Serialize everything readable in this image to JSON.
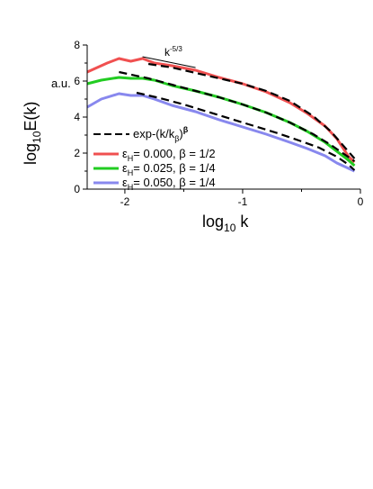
{
  "chart_data": {
    "type": "line",
    "xlim": [
      -2.32,
      0
    ],
    "ylim": [
      0,
      8
    ],
    "x_ticks": [
      "-2",
      "-1",
      "0"
    ],
    "y_ticks": [
      "0",
      "2",
      "4",
      "6",
      "8"
    ],
    "ylabel_base": "log",
    "ylabel_sub": "10",
    "ylabel_rest": "E(k)",
    "xlabel_base": "log",
    "xlabel_sub": "10",
    "xlabel_rest": " k",
    "unit_label": "a.u.",
    "slope_label_base": "k",
    "slope_label_exp": "-5/3",
    "slope_line": {
      "x": [
        -1.85,
        -1.4
      ],
      "y": [
        7.35,
        6.75
      ]
    },
    "legend_placement": "bottom-left",
    "legend": {
      "fit_label": "exp-(k/k",
      "fit_sub": "β",
      "fit_paren": ")",
      "fit_exp": "β",
      "entries": [
        {
          "eps": "ε",
          "sub": "H",
          "text": "= 0.000, β = 1/2",
          "color": "#f05050"
        },
        {
          "eps": "ε",
          "sub": "H",
          "text": "= 0.025, β = 1/4",
          "color": "#22cc22"
        },
        {
          "eps": "ε",
          "sub": "H",
          "text": "= 0.050, β = 1/4",
          "color": "#8888ee"
        }
      ]
    },
    "series": [
      {
        "name": "ε_H = 0.000, β = 1/2",
        "color": "#f05050",
        "x": [
          -2.32,
          -2.15,
          -2.05,
          -1.95,
          -1.85,
          -1.75,
          -1.6,
          -1.4,
          -1.2,
          -1.0,
          -0.8,
          -0.6,
          -0.45,
          -0.3,
          -0.2,
          -0.1,
          -0.05
        ],
        "y": [
          6.5,
          7.0,
          7.25,
          7.1,
          7.25,
          7.0,
          6.85,
          6.6,
          6.2,
          5.85,
          5.4,
          4.8,
          4.2,
          3.5,
          2.8,
          1.8,
          1.5
        ]
      },
      {
        "name": "ε_H = 0.025, β = 1/4",
        "color": "#22cc22",
        "x": [
          -2.32,
          -2.2,
          -2.05,
          -1.95,
          -1.85,
          -1.75,
          -1.6,
          -1.4,
          -1.2,
          -1.0,
          -0.8,
          -0.6,
          -0.45,
          -0.3,
          -0.2,
          -0.1,
          -0.05
        ],
        "y": [
          5.85,
          6.05,
          6.2,
          6.15,
          6.15,
          6.05,
          5.75,
          5.45,
          5.1,
          4.7,
          4.25,
          3.7,
          3.2,
          2.6,
          2.1,
          1.6,
          1.3
        ]
      },
      {
        "name": "ε_H = 0.050, β = 1/4",
        "color": "#8888ee",
        "x": [
          -2.32,
          -2.2,
          -2.05,
          -1.95,
          -1.85,
          -1.75,
          -1.6,
          -1.4,
          -1.2,
          -1.0,
          -0.8,
          -0.6,
          -0.45,
          -0.3,
          -0.2,
          -0.1,
          -0.05
        ],
        "y": [
          4.55,
          5.0,
          5.3,
          5.2,
          5.2,
          5.0,
          4.65,
          4.3,
          3.85,
          3.45,
          3.05,
          2.6,
          2.25,
          1.85,
          1.45,
          1.15,
          1.0
        ]
      }
    ],
    "fit_series": [
      {
        "name": "fit red",
        "x": [
          -1.8,
          -1.6,
          -1.4,
          -1.2,
          -1.0,
          -0.8,
          -0.6,
          -0.4,
          -0.25,
          -0.15,
          -0.05
        ],
        "y": [
          6.95,
          6.75,
          6.45,
          6.15,
          5.85,
          5.45,
          4.9,
          4.05,
          3.2,
          2.45,
          1.7
        ]
      },
      {
        "name": "fit green",
        "x": [
          -2.05,
          -1.8,
          -1.6,
          -1.4,
          -1.2,
          -1.0,
          -0.8,
          -0.6,
          -0.4,
          -0.25,
          -0.15,
          -0.05
        ],
        "y": [
          6.5,
          6.15,
          5.8,
          5.45,
          5.1,
          4.7,
          4.25,
          3.7,
          3.05,
          2.45,
          2.0,
          1.55
        ]
      },
      {
        "name": "fit blue",
        "x": [
          -1.9,
          -1.7,
          -1.5,
          -1.3,
          -1.1,
          -0.9,
          -0.7,
          -0.5,
          -0.35,
          -0.2,
          -0.1,
          -0.05
        ],
        "y": [
          5.35,
          5.05,
          4.7,
          4.3,
          3.9,
          3.5,
          3.1,
          2.65,
          2.3,
          1.8,
          1.35,
          1.05
        ]
      }
    ]
  }
}
